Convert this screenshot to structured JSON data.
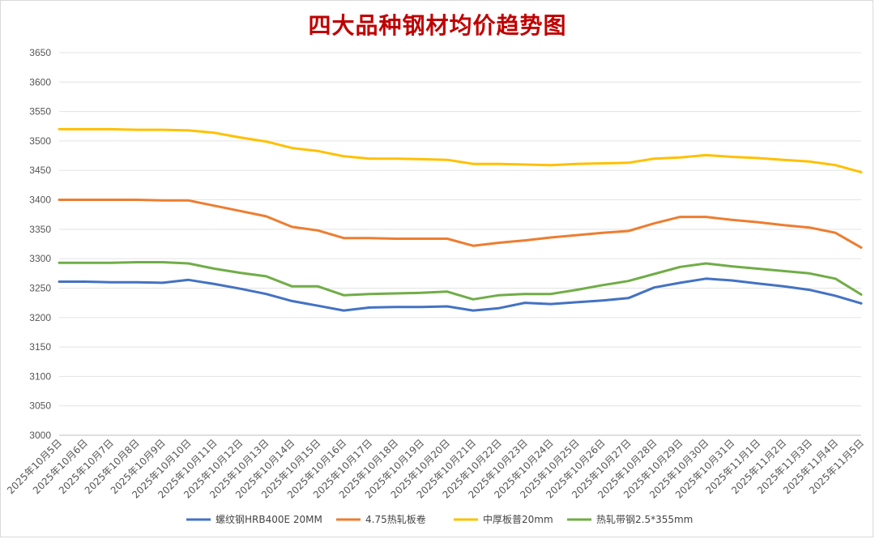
{
  "chart_data": {
    "type": "line",
    "title": "四大品种钢材均价趋势图",
    "ylim": [
      3000,
      3650
    ],
    "yticks": [
      3000,
      3050,
      3100,
      3150,
      3200,
      3250,
      3300,
      3350,
      3400,
      3450,
      3500,
      3550,
      3600,
      3650
    ],
    "grid": true,
    "legend_position": "bottom",
    "categories": [
      "2025年10月5日",
      "2025年10月6日",
      "2025年10月7日",
      "2025年10月8日",
      "2025年10月9日",
      "2025年10月10日",
      "2025年10月11日",
      "2025年10月12日",
      "2025年10月13日",
      "2025年10月14日",
      "2025年10月15日",
      "2025年10月16日",
      "2025年10月17日",
      "2025年10月18日",
      "2025年10月19日",
      "2025年10月20日",
      "2025年10月21日",
      "2025年10月22日",
      "2025年10月23日",
      "2025年10月24日",
      "2025年10月25日",
      "2025年10月26日",
      "2025年10月27日",
      "2025年10月28日",
      "2025年10月29日",
      "2025年10月30日",
      "2025年10月31日",
      "2025年11月1日",
      "2025年11月2日",
      "2025年11月3日",
      "2025年11月4日",
      "2025年11月5日"
    ],
    "series": [
      {
        "name": "螺纹钢HRB400E 20MM",
        "color": "#4472c4",
        "values": [
          3261,
          3261,
          3260,
          3260,
          3259,
          3264,
          3257,
          3249,
          3240,
          3228,
          3220,
          3212,
          3217,
          3218,
          3218,
          3219,
          3212,
          3216,
          3225,
          3223,
          3226,
          3229,
          3233,
          3251,
          3259,
          3266,
          3263,
          3258,
          3253,
          3247,
          3237,
          3224
        ]
      },
      {
        "name": "4.75热轧板卷",
        "color": "#ed7d31",
        "values": [
          3400,
          3400,
          3400,
          3400,
          3399,
          3399,
          3390,
          3381,
          3372,
          3354,
          3348,
          3335,
          3335,
          3334,
          3334,
          3334,
          3322,
          3327,
          3331,
          3336,
          3340,
          3344,
          3347,
          3360,
          3371,
          3371,
          3366,
          3362,
          3357,
          3353,
          3344,
          3319
        ]
      },
      {
        "name": "中厚板普20mm",
        "color": "#ffc000",
        "values": [
          3520,
          3520,
          3520,
          3519,
          3519,
          3518,
          3514,
          3506,
          3499,
          3488,
          3483,
          3474,
          3470,
          3470,
          3469,
          3468,
          3461,
          3461,
          3460,
          3459,
          3461,
          3462,
          3463,
          3470,
          3472,
          3476,
          3473,
          3471,
          3468,
          3465,
          3459,
          3447
        ]
      },
      {
        "name": "热轧带钢2.5*355mm",
        "color": "#70ad47",
        "values": [
          3293,
          3293,
          3293,
          3294,
          3294,
          3292,
          3283,
          3276,
          3270,
          3253,
          3253,
          3238,
          3240,
          3241,
          3242,
          3244,
          3231,
          3238,
          3240,
          3240,
          3247,
          3255,
          3262,
          3274,
          3286,
          3292,
          3287,
          3283,
          3279,
          3275,
          3266,
          3239
        ]
      }
    ]
  }
}
